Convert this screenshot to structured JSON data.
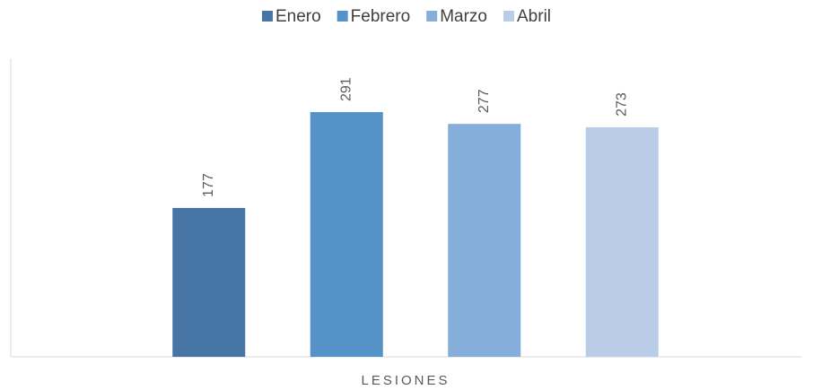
{
  "chart_data": {
    "type": "bar",
    "categories": [
      "LESIONES"
    ],
    "series": [
      {
        "name": "Enero",
        "color": "#4775a6",
        "values": [
          177
        ]
      },
      {
        "name": "Febrero",
        "color": "#5592c8",
        "values": [
          291
        ]
      },
      {
        "name": "Marzo",
        "color": "#86aedb",
        "values": [
          277
        ]
      },
      {
        "name": "Abril",
        "color": "#b9cde8",
        "values": [
          273
        ]
      }
    ],
    "ylim": [
      0,
      355
    ],
    "legend": "top"
  }
}
